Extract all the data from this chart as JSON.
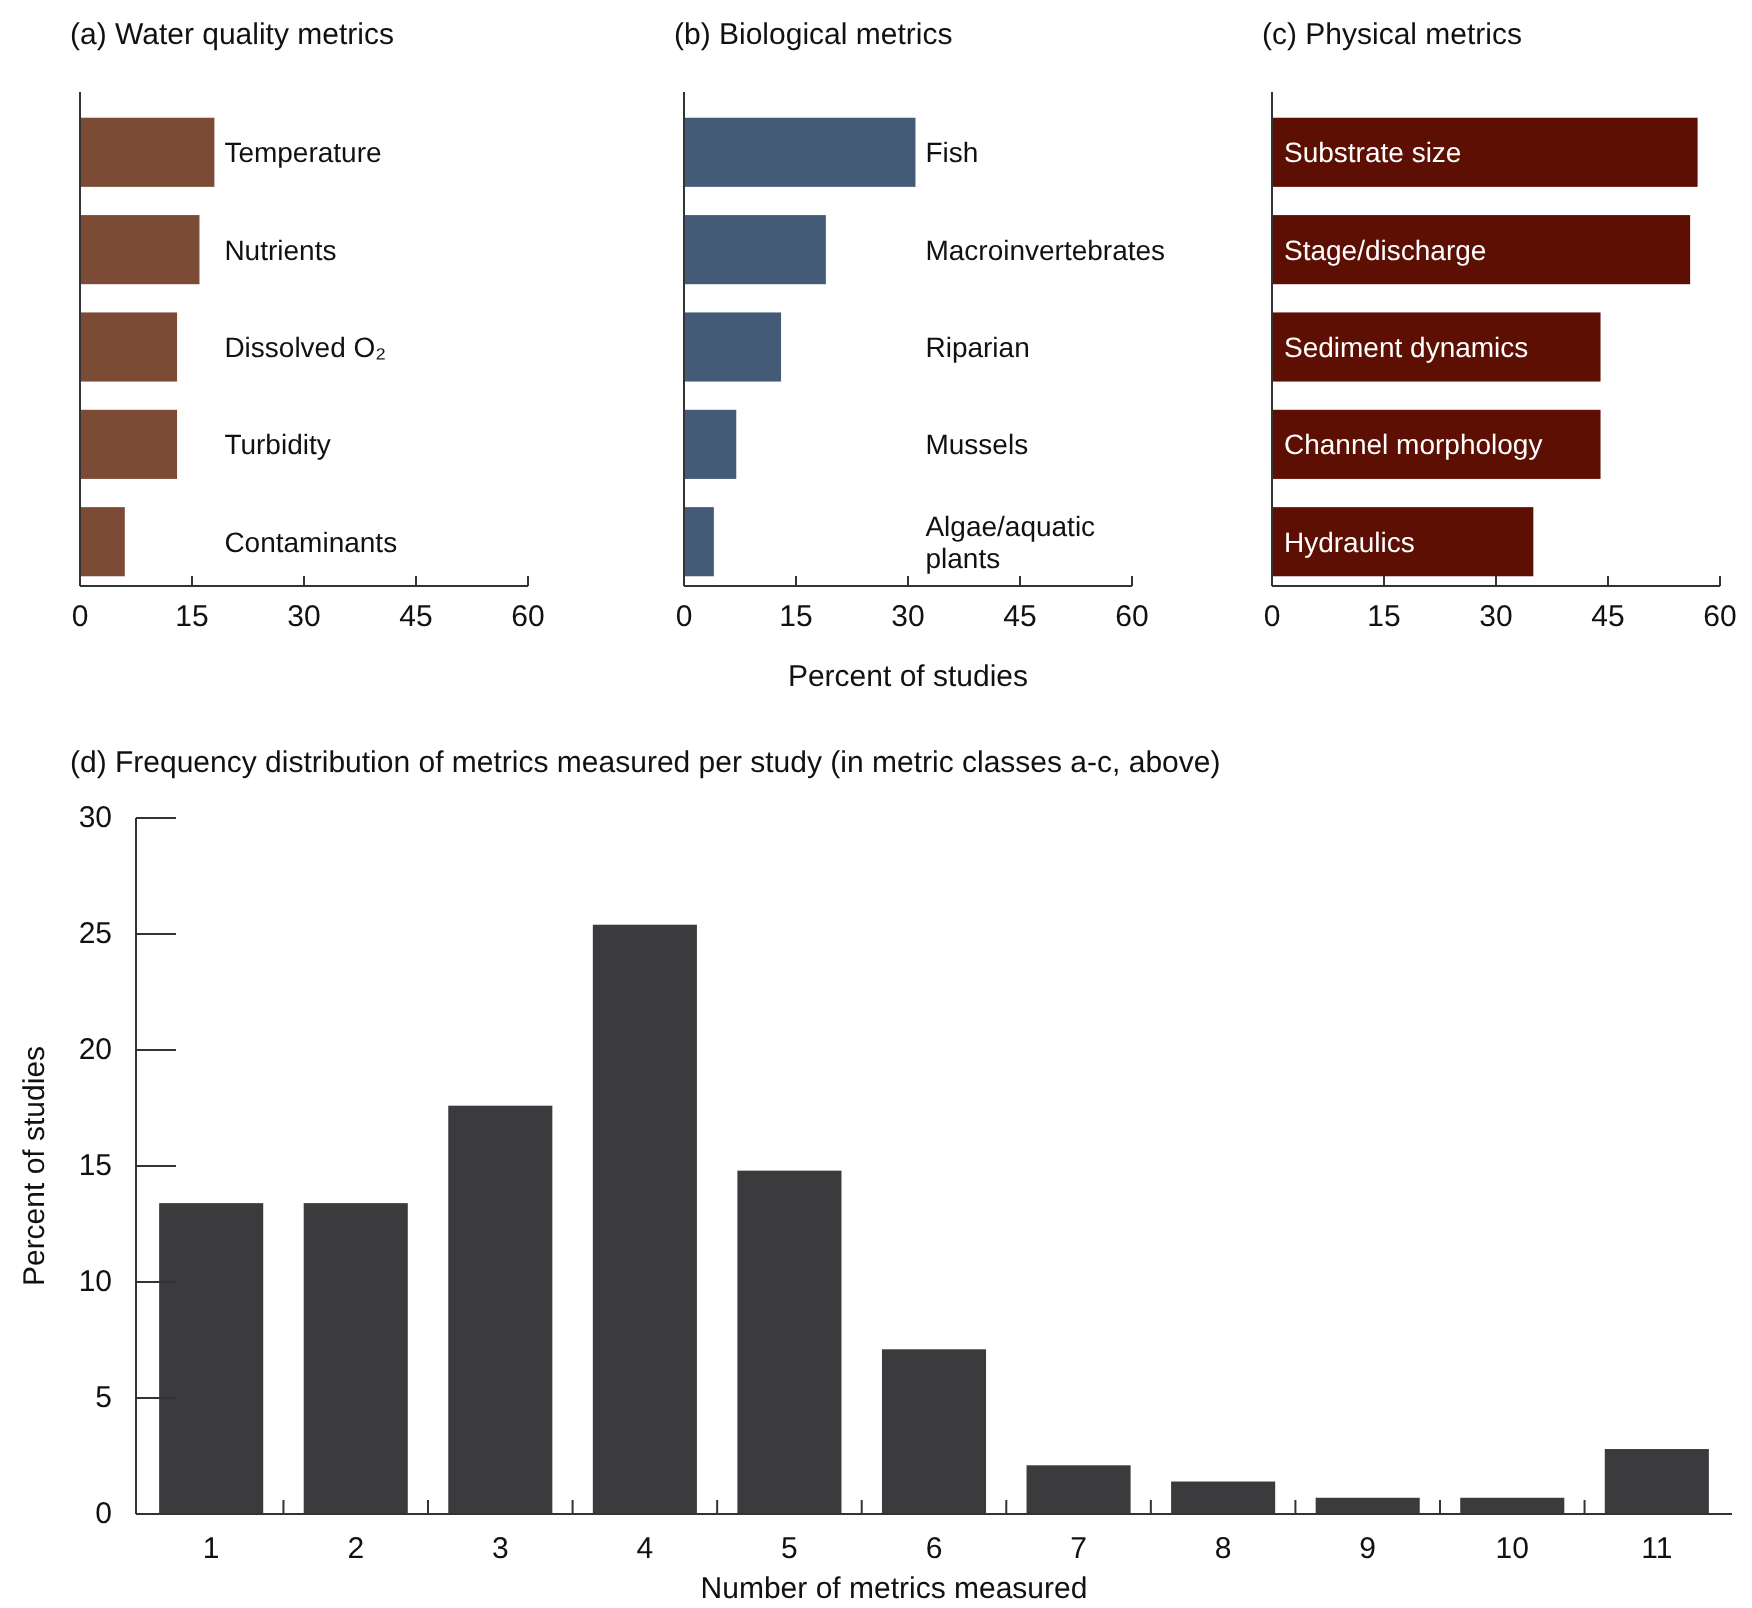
{
  "chart_data": [
    {
      "type": "bar",
      "orientation": "horizontal",
      "title": "(a) Water quality metrics",
      "categories": [
        "Temperature",
        "Nutrients",
        "Dissolved O₂",
        "Turbidity",
        "Contaminants"
      ],
      "values": [
        18,
        16,
        13,
        13,
        6
      ],
      "color": "#7b4b36",
      "xlim": [
        0,
        60
      ],
      "xticks": [
        0,
        15,
        30,
        45,
        60
      ]
    },
    {
      "type": "bar",
      "orientation": "horizontal",
      "title": "(b) Biological metrics",
      "xlabel": "Percent of studies",
      "categories": [
        "Fish",
        "Macroinvertebrates",
        "Riparian",
        "Mussels",
        "Algae/aquatic plants"
      ],
      "values": [
        31,
        19,
        13,
        7,
        4
      ],
      "color": "#445b78",
      "xlim": [
        0,
        60
      ],
      "xticks": [
        0,
        15,
        30,
        45,
        60
      ]
    },
    {
      "type": "bar",
      "orientation": "horizontal",
      "title": "(c) Physical metrics",
      "categories": [
        "Substrate size",
        "Stage/discharge",
        "Sediment dynamics",
        "Channel morphology",
        "Hydraulics"
      ],
      "values": [
        57,
        56,
        44,
        44,
        35
      ],
      "color": "#5c0f02",
      "xlim": [
        0,
        60
      ],
      "xticks": [
        0,
        15,
        30,
        45,
        60
      ]
    },
    {
      "type": "bar",
      "title": "(d) Frequency distribution of metrics measured per study (in metric classes a-c, above)",
      "xlabel": "Number of metrics measured",
      "ylabel": "Percent of studies",
      "categories": [
        "1",
        "2",
        "3",
        "4",
        "5",
        "6",
        "7",
        "8",
        "9",
        "10",
        "11"
      ],
      "values": [
        13.4,
        13.4,
        17.6,
        25.4,
        14.8,
        7.1,
        2.1,
        1.4,
        0.7,
        0.7,
        2.8
      ],
      "color": "#3b3b3d",
      "ylim": [
        0,
        30
      ],
      "yticks": [
        0,
        5,
        10,
        15,
        20,
        25,
        30
      ]
    }
  ]
}
